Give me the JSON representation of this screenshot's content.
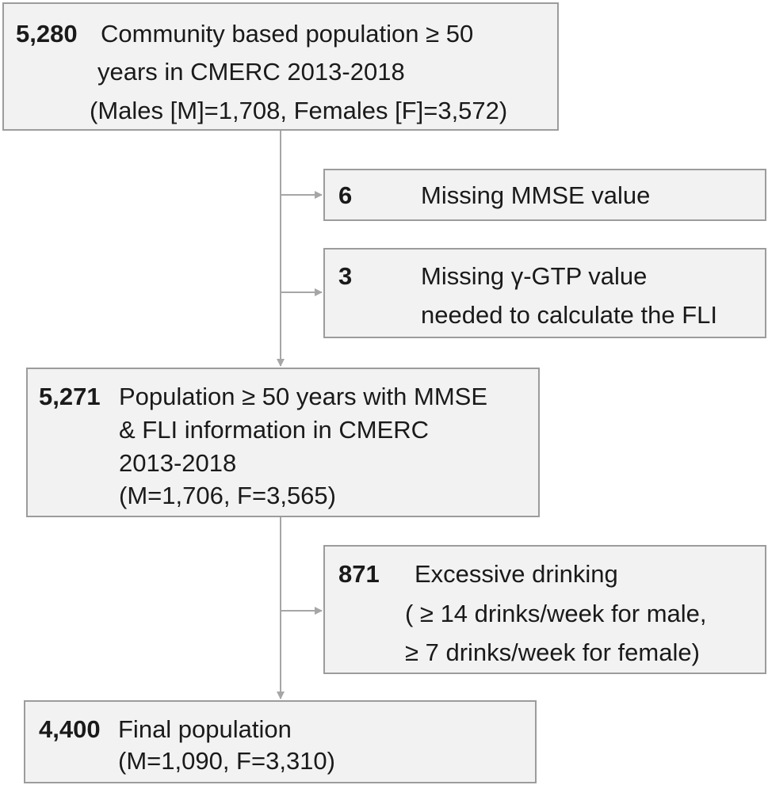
{
  "colors": {
    "box_fill": "#f2f2f2",
    "box_border": "#9c9c9c",
    "arrow": "#a6a6a6",
    "text": "#1a1a1a"
  },
  "flow": {
    "initial": {
      "count": "5,280",
      "lines": [
        "Community based population ≥ 50",
        "years in CMERC 2013-2018",
        "(Males [M]=1,708, Females [F]=3,572)"
      ]
    },
    "exclusion_1": {
      "count": "6",
      "lines": [
        "Missing MMSE value"
      ]
    },
    "exclusion_2": {
      "count": "3",
      "lines": [
        "Missing γ-GTP value",
        "needed to calculate the FLI"
      ]
    },
    "middle": {
      "count": "5,271",
      "lines": [
        "Population ≥ 50 years with MMSE",
        "& FLI information in CMERC",
        "2013-2018",
        "(M=1,706, F=3,565)"
      ]
    },
    "exclusion_3": {
      "count": "871",
      "lines": [
        "Excessive drinking",
        "( ≥ 14 drinks/week for male,",
        "≥ 7 drinks/week for female)"
      ]
    },
    "final": {
      "count": "4,400",
      "lines": [
        "Final population",
        "(M=1,090, F=3,310)"
      ]
    }
  }
}
